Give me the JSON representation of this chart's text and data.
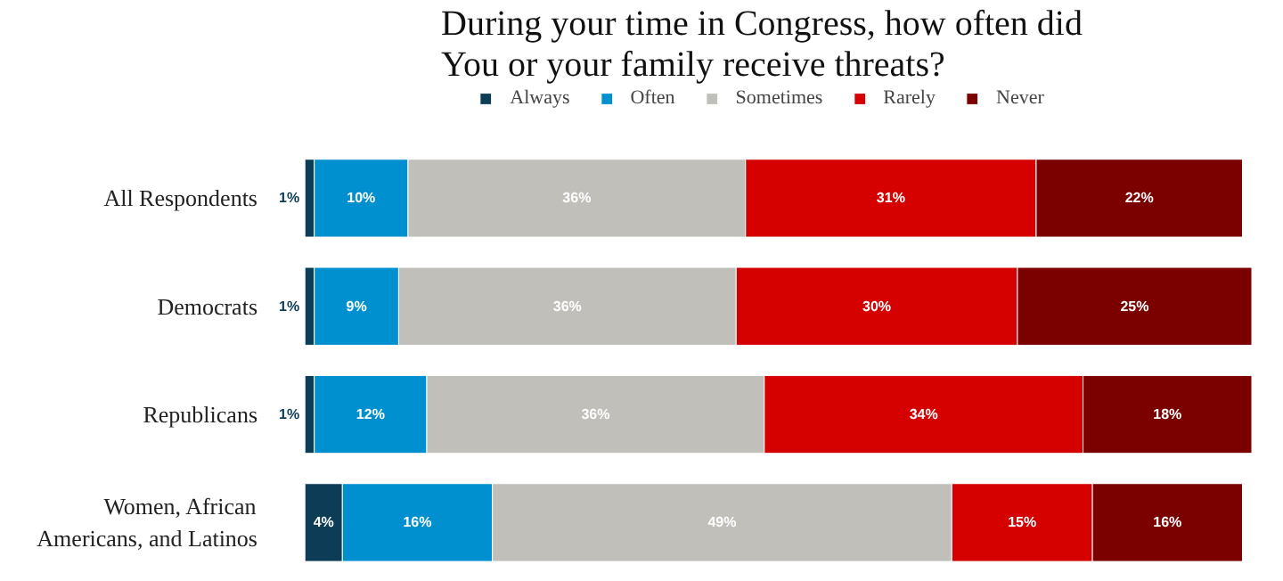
{
  "chart_data": {
    "type": "bar",
    "orientation": "horizontal",
    "stacked": true,
    "title": "During your time in Congress, how often did\nYou or your family receive threats?",
    "categories": [
      "All Respondents",
      "Democrats",
      "Republicans",
      "Women, African Americans, and Latinos"
    ],
    "series": [
      {
        "name": "Always",
        "color": "#0d3d56",
        "values": [
          1,
          1,
          1,
          4
        ],
        "value_labels": [
          "1%",
          "1%",
          "1%",
          "4%"
        ]
      },
      {
        "name": "Often",
        "color": "#0090d0",
        "values": [
          10,
          9,
          12,
          16
        ],
        "value_labels": [
          "10%",
          "9%",
          "12%",
          "16%"
        ]
      },
      {
        "name": "Sometimes",
        "color": "#c0bfba",
        "values": [
          36,
          36,
          36,
          49
        ],
        "value_labels": [
          "36%",
          "36%",
          "36%",
          "49%"
        ]
      },
      {
        "name": "Rarely",
        "color": "#d50000",
        "values": [
          31,
          30,
          34,
          15
        ],
        "value_labels": [
          "31%",
          "30%",
          "34%",
          "15%"
        ]
      },
      {
        "name": "Never",
        "color": "#7b0000",
        "values": [
          22,
          25,
          18,
          16
        ],
        "value_labels": [
          "22%",
          "25%",
          "18%",
          "16%"
        ]
      }
    ],
    "legend": "top",
    "grid": false
  }
}
